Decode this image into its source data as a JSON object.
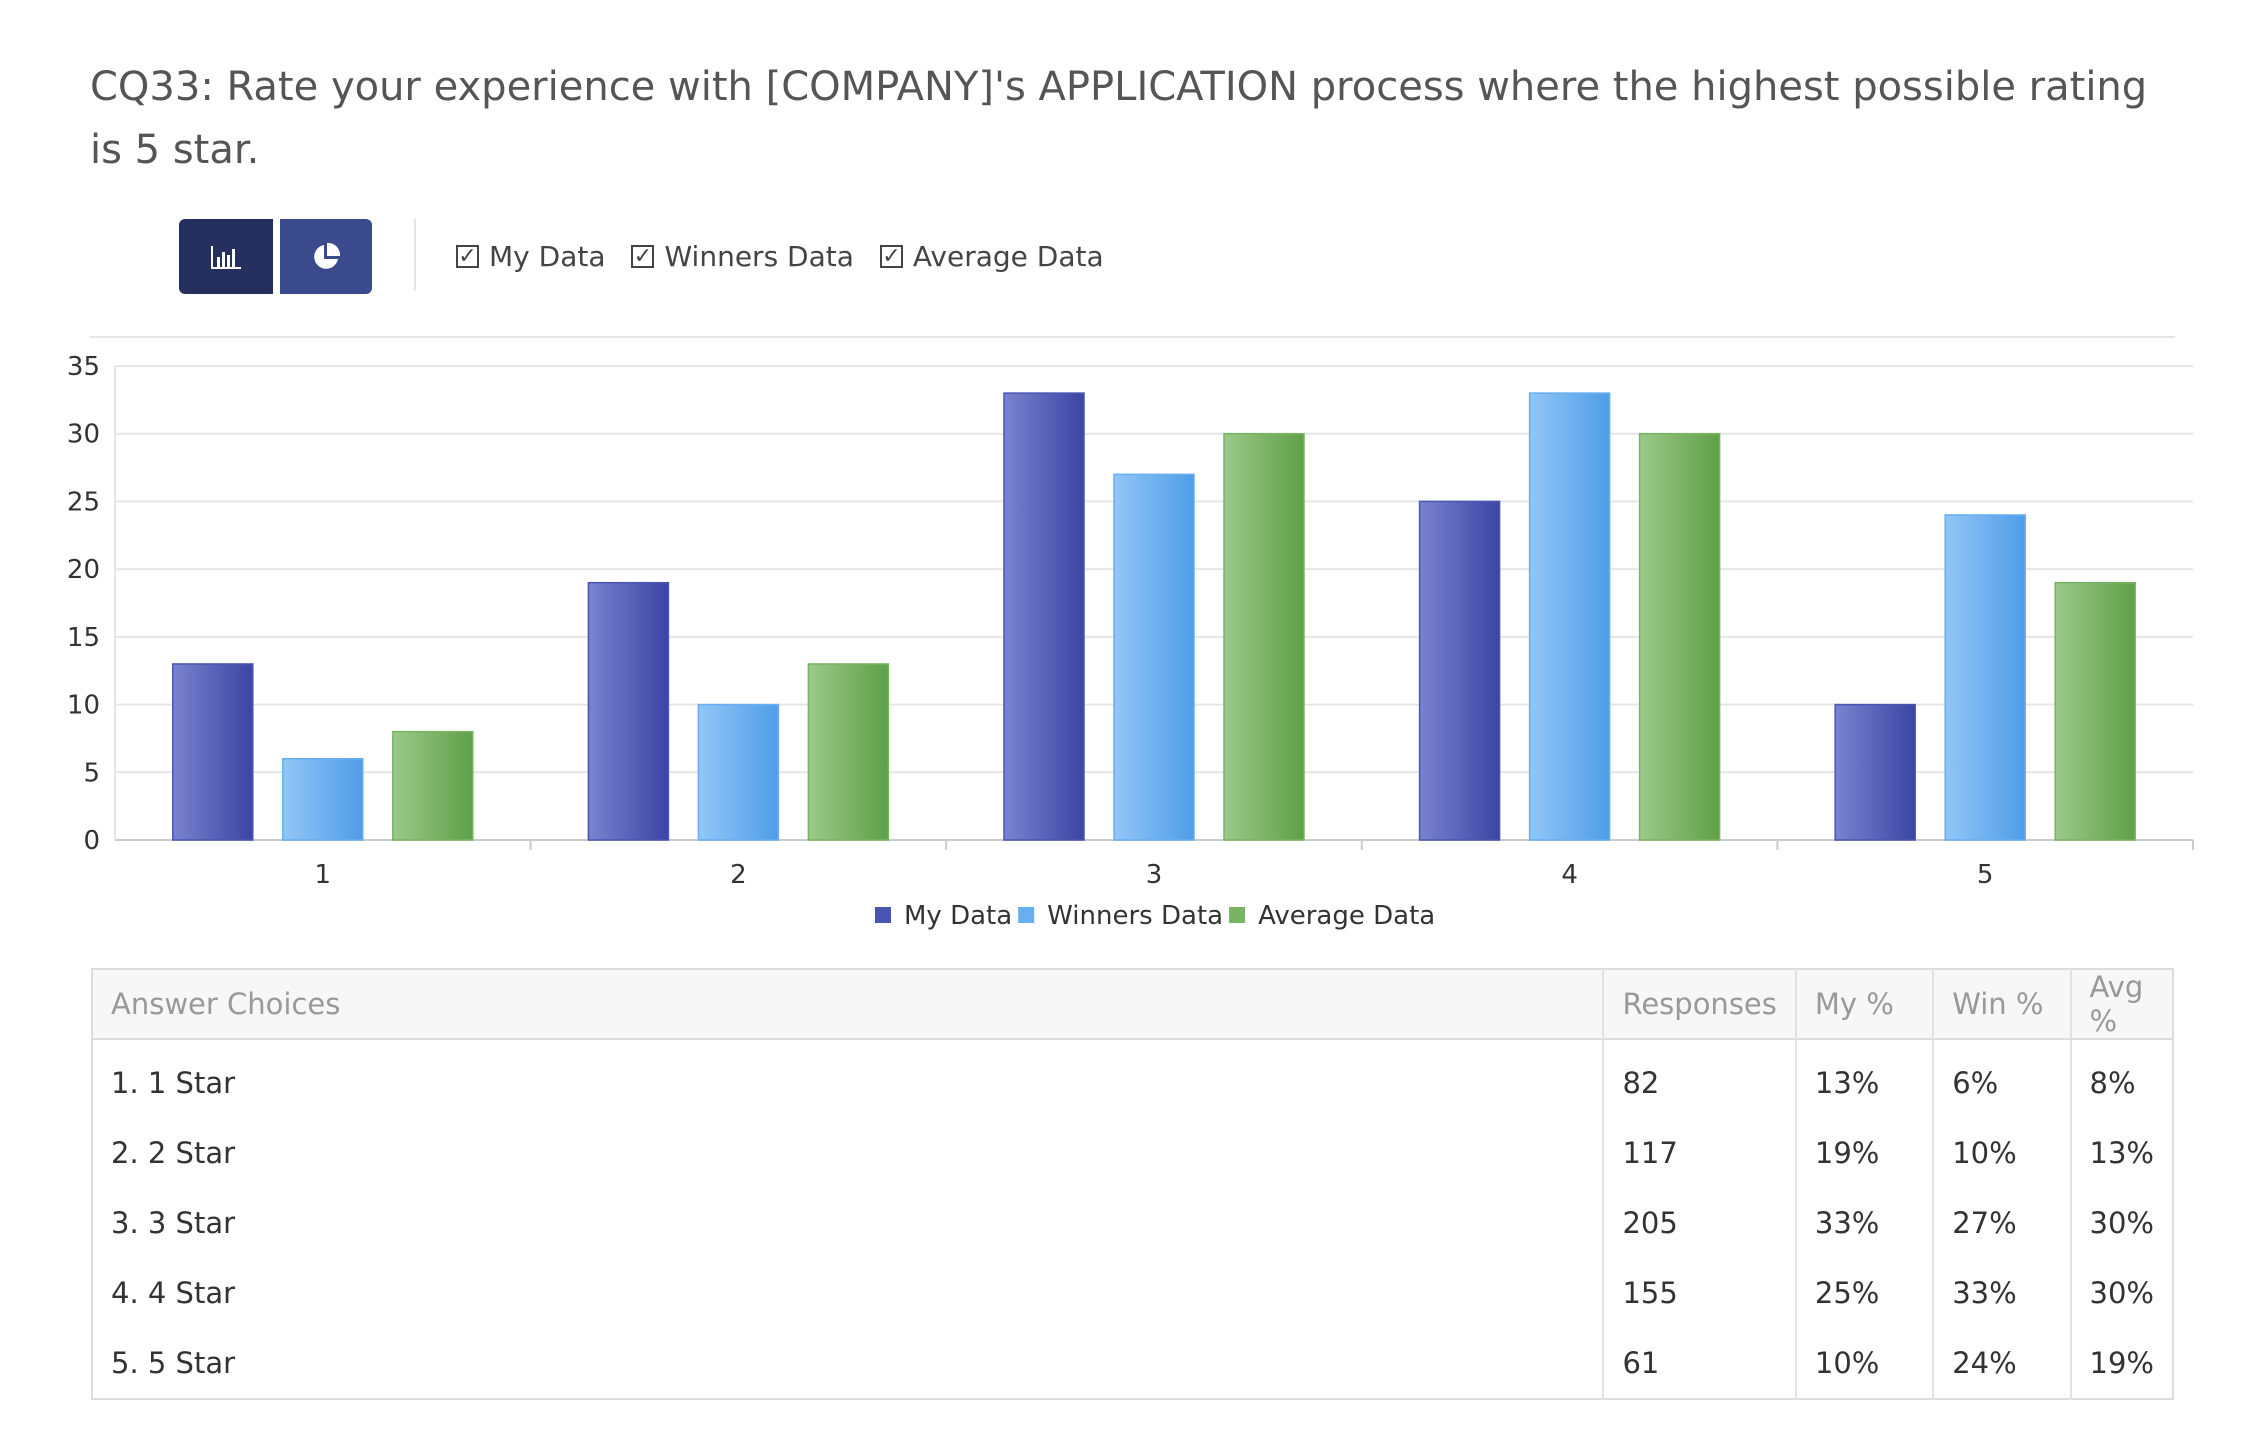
{
  "question": {
    "title": "CQ33: Rate your experience with [COMPANY]'s APPLICATION process where the highest possible rating is 5 star."
  },
  "toolbar": {
    "bar_view_icon": "bar-chart-icon",
    "pie_view_icon": "pie-chart-icon",
    "toggles": [
      {
        "label": "My Data",
        "checked": true,
        "mark": "✓"
      },
      {
        "label": "Winners Data",
        "checked": true,
        "mark": "✓"
      },
      {
        "label": "Average Data",
        "checked": true,
        "mark": "✓"
      }
    ]
  },
  "colors": {
    "my_data": "#4a54b3",
    "winners_data": "#68aef0",
    "average_data": "#79b462"
  },
  "chart_data": {
    "type": "bar",
    "title": "",
    "xlabel": "",
    "ylabel": "",
    "categories": [
      "1",
      "2",
      "3",
      "4",
      "5"
    ],
    "ylim": [
      0,
      35
    ],
    "yticks": [
      0,
      5,
      10,
      15,
      20,
      25,
      30,
      35
    ],
    "grid": true,
    "legend_position": "bottom-center",
    "series": [
      {
        "name": "My Data",
        "values": [
          13,
          19,
          33,
          25,
          10
        ]
      },
      {
        "name": "Winners Data",
        "values": [
          6,
          10,
          27,
          33,
          24
        ]
      },
      {
        "name": "Average Data",
        "values": [
          8,
          13,
          30,
          30,
          19
        ]
      }
    ]
  },
  "table": {
    "headers": [
      "Answer Choices",
      "Responses",
      "My %",
      "Win %",
      "Avg %"
    ],
    "rows": [
      [
        "1. 1 Star",
        "82",
        "13%",
        "6%",
        "8%"
      ],
      [
        "2. 2 Star",
        "117",
        "19%",
        "10%",
        "13%"
      ],
      [
        "3. 3 Star",
        "205",
        "33%",
        "27%",
        "30%"
      ],
      [
        "4. 4 Star",
        "155",
        "25%",
        "33%",
        "30%"
      ],
      [
        "5. 5 Star",
        "61",
        "10%",
        "24%",
        "19%"
      ]
    ]
  }
}
